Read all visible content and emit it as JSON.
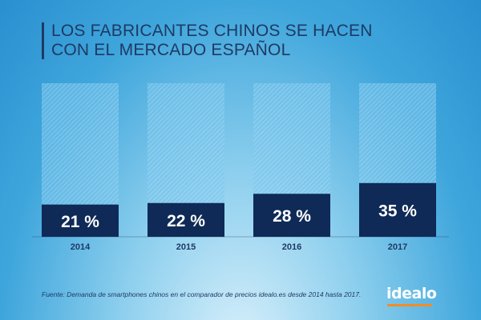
{
  "title_lines": [
    "LOS FABRICANTES CHINOS SE HACEN",
    "CON EL MERCADO ESPAÑOL"
  ],
  "footnote": "Fuente: Demanda de smartphones chinos en el comparador de precios idealo.es desde 2014 hasta 2017.",
  "logo": "idealo",
  "colors": {
    "bar": "#0f2a57",
    "background_bar": "#6ec0ea",
    "text_dark": "#1e3a64",
    "logo_accent": "#f28c28"
  },
  "chart_data": {
    "type": "bar",
    "categories": [
      "2014",
      "2015",
      "2016",
      "2017"
    ],
    "values": [
      21,
      22,
      28,
      35
    ],
    "value_labels": [
      "21 %",
      "22 %",
      "28 %",
      "35 %"
    ],
    "ylim": [
      0,
      100
    ],
    "grid": false,
    "legend": "none"
  }
}
